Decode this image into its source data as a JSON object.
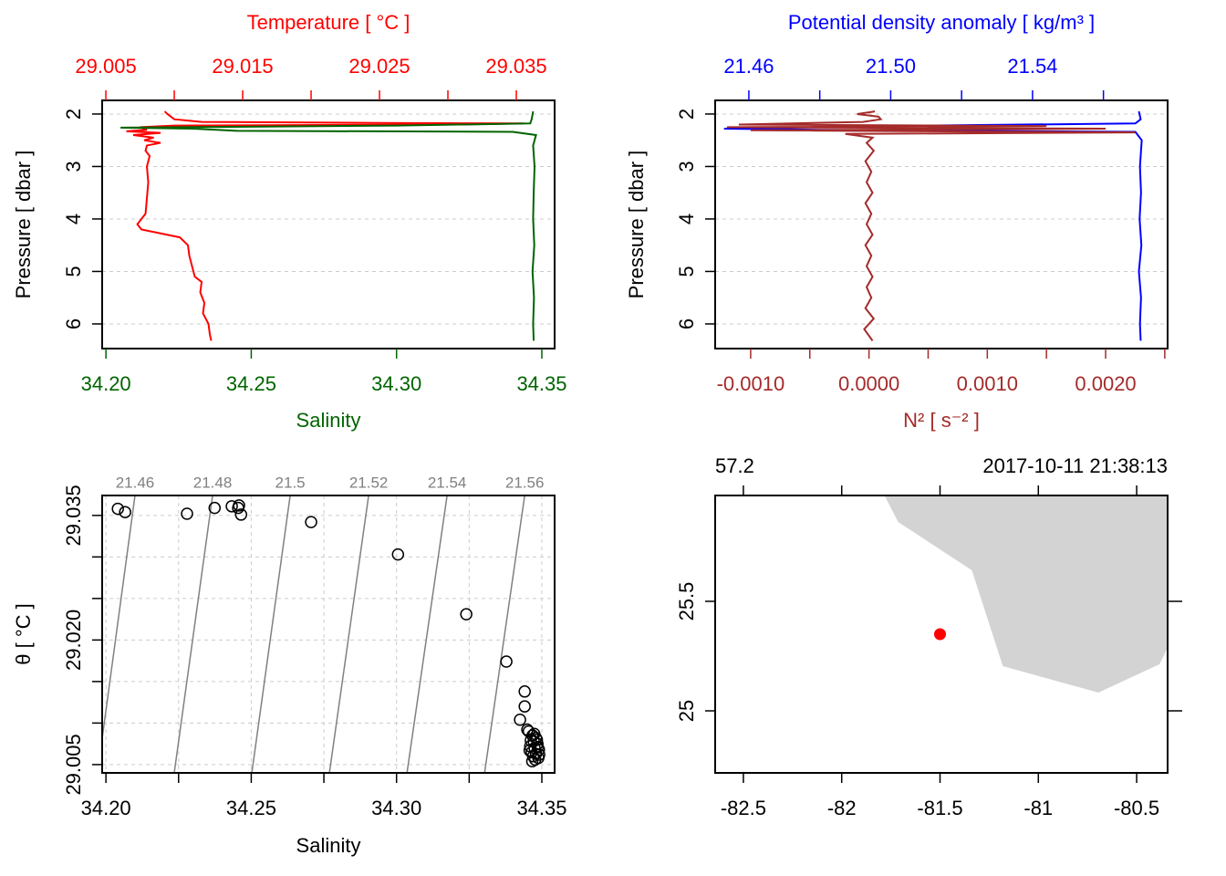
{
  "chart_data": [
    {
      "type": "profile",
      "x_label": "Salinity",
      "x2_label": "Temperature [ °C ]",
      "y_label": "Pressure [ dbar ]",
      "x_color": "#006400",
      "x2_color": "#ff0000",
      "xlim": [
        34.1987,
        34.3544
      ],
      "xticks": [
        {
          "value": 34.2,
          "label": "34.20"
        },
        {
          "value": 34.25,
          "label": "34.25"
        },
        {
          "value": 34.3,
          "label": "34.30"
        },
        {
          "value": 34.35,
          "label": "34.35"
        }
      ],
      "x2lim": [
        29.00473,
        29.0378
      ],
      "x2ticks": [
        29.005,
        29.015,
        29.025,
        29.035
      ],
      "minor_x2ticks": [
        29.01,
        29.02,
        29.03
      ],
      "ylim": [
        6.47,
        1.74
      ],
      "yticks": [
        2,
        3,
        4,
        5,
        6
      ],
      "grid": "y",
      "series": [
        {
          "axis": "x2",
          "color": "#ff0000",
          "pressure": [
            1.95,
            2.0,
            2.1,
            2.15,
            2.17,
            2.18,
            2.2,
            2.22,
            2.25,
            2.3,
            2.33,
            2.36,
            2.4,
            2.45,
            2.5,
            2.55,
            2.6,
            2.7,
            2.8,
            3.0,
            3.3,
            3.6,
            3.9,
            4.1,
            4.2,
            4.35,
            4.5,
            4.7,
            4.9,
            5.1,
            5.2,
            5.4,
            5.6,
            5.8,
            6.0,
            6.2,
            6.32
          ],
          "values": [
            29.0093,
            29.0095,
            29.01,
            29.012,
            29.025,
            29.0355,
            29.03,
            29.01,
            29.0075,
            29.008,
            29.0065,
            29.009,
            29.007,
            29.0085,
            29.0078,
            29.009,
            29.008,
            29.0079,
            29.0082,
            29.008,
            29.0081,
            29.008,
            29.0079,
            29.0073,
            29.0076,
            29.0104,
            29.011,
            29.0111,
            29.0113,
            29.0115,
            29.012,
            29.0119,
            29.0122,
            29.0121,
            29.0125,
            29.0126,
            29.0127
          ]
        },
        {
          "axis": "x",
          "color": "#006400",
          "pressure": [
            1.95,
            2.1,
            2.18,
            2.22,
            2.26,
            2.28,
            2.32,
            2.34,
            2.4,
            2.6,
            3.0,
            3.5,
            4.0,
            4.5,
            5.0,
            5.5,
            6.0,
            6.32
          ],
          "values": [
            34.347,
            34.3465,
            34.346,
            34.3,
            34.205,
            34.23,
            34.245,
            34.34,
            34.348,
            34.347,
            34.3475,
            34.3472,
            34.347,
            34.3474,
            34.3468,
            34.3473,
            34.347,
            34.3472
          ]
        }
      ]
    },
    {
      "type": "profile",
      "x_label": "N² [ s⁻² ]",
      "x2_label": "Potential density anomaly [ kg/m³ ]",
      "y_label": "Pressure [ dbar ]",
      "x_color": "#a52a2a",
      "x2_color": "#0000ff",
      "xlim": [
        -0.0013,
        0.002524
      ],
      "xticks": [
        {
          "value": -0.001,
          "label": "-0.0010"
        },
        {
          "value": 0,
          "label": "0.0000"
        },
        {
          "value": 0.001,
          "label": "0.0010"
        },
        {
          "value": 0.002,
          "label": "0.0020"
        }
      ],
      "minor_xticks": [
        -0.0005,
        0.0005,
        0.0015,
        0.0025
      ],
      "x2lim": [
        21.4505,
        21.5781
      ],
      "x2ticks": [
        21.46,
        {
          "value": 21.5,
          "label": "21.50"
        },
        21.54
      ],
      "minor_x2ticks": [
        21.48,
        21.52,
        21.56
      ],
      "ylim": [
        6.47,
        1.74
      ],
      "yticks": [
        2,
        3,
        4,
        5,
        6
      ],
      "grid": "y",
      "series": [
        {
          "axis": "x2",
          "color": "#0000ff",
          "pressure": [
            1.95,
            2.1,
            2.18,
            2.22,
            2.28,
            2.3,
            2.34,
            2.5,
            3.0,
            3.5,
            4.0,
            4.5,
            5.0,
            5.5,
            6.0,
            6.32
          ],
          "values": [
            21.57,
            21.5705,
            21.569,
            21.51,
            21.453,
            21.48,
            21.569,
            21.5708,
            21.5703,
            21.5706,
            21.5702,
            21.5707,
            21.57,
            21.5706,
            21.5703,
            21.5705
          ]
        },
        {
          "axis": "x",
          "color": "#a52a2a",
          "pressure": [
            1.95,
            2.0,
            2.05,
            2.1,
            2.15,
            2.2,
            2.23,
            2.25,
            2.28,
            2.31,
            2.35,
            2.38,
            2.45,
            2.55,
            2.7,
            2.9,
            3.1,
            3.3,
            3.5,
            3.7,
            3.9,
            4.1,
            4.3,
            4.5,
            4.7,
            4.9,
            5.1,
            5.3,
            5.5,
            5.7,
            5.9,
            6.1,
            6.32
          ],
          "values": [
            5e-05,
            -0.0001,
            8e-05,
            0.0001,
            -5e-05,
            -0.0011,
            0.0015,
            -0.0012,
            0.002,
            -0.001,
            0.00225,
            -0.0002,
            3e-05,
            -2e-05,
            4e-05,
            -3e-05,
            2e-05,
            -2e-05,
            3e-05,
            -3e-05,
            2e-05,
            -2e-05,
            3e-05,
            -3e-05,
            2e-05,
            -2e-05,
            3e-05,
            -2e-05,
            2e-05,
            -3e-05,
            4e-05,
            -4e-05,
            3e-05
          ]
        }
      ]
    },
    {
      "type": "scatter",
      "x_label": "Salinity",
      "y_label": "θ [ °C ]",
      "xlim": [
        34.1987,
        34.3544
      ],
      "xticks": [
        {
          "value": 34.2,
          "label": "34.20"
        },
        {
          "value": 34.25,
          "label": "34.25"
        },
        {
          "value": 34.3,
          "label": "34.30"
        },
        {
          "value": 34.35,
          "label": "34.35"
        }
      ],
      "minor_xticks": [
        34.225,
        34.275,
        34.325
      ],
      "ylim": [
        29.004,
        29.0374
      ],
      "yticks": [
        29.005,
        {
          "value": 29.02,
          "label": "29.020"
        },
        29.035
      ],
      "minor_yticks": [
        29.01,
        29.015,
        29.025,
        29.03
      ],
      "grid": "both",
      "x": [
        34.2041,
        34.2066,
        34.2279,
        34.2374,
        34.2433,
        34.2458,
        34.2455,
        34.2465,
        34.2706,
        34.3005,
        34.324,
        34.3378,
        34.3441,
        34.3441,
        34.3425,
        34.345,
        34.3455,
        34.3468,
        34.348,
        34.3472,
        34.3485,
        34.346,
        34.3475,
        34.349,
        34.3465,
        34.348,
        34.347,
        34.3488,
        34.3458,
        34.3477,
        34.3467,
        34.3483,
        34.3462,
        34.3491,
        34.3474,
        34.3486
      ],
      "values": [
        29.0358,
        29.0354,
        29.0352,
        29.0359,
        29.0361,
        29.0362,
        29.0359,
        29.0351,
        29.0342,
        29.0303,
        29.0231,
        29.0174,
        29.0138,
        29.012,
        29.0104,
        29.0092,
        29.009,
        29.0085,
        29.0082,
        29.0078,
        29.0075,
        29.0072,
        29.007,
        29.0068,
        29.0065,
        29.0063,
        29.006,
        29.0058,
        29.0067,
        29.0056,
        29.0054,
        29.008,
        29.0079,
        29.0062,
        29.0087,
        29.0071
      ],
      "isopycnals": {
        "color": "#808080",
        "levels": [
          21.46,
          21.48,
          21.5,
          21.52,
          21.54,
          21.56
        ],
        "salinity_at_top": [
          34.21,
          34.2367,
          34.2634,
          34.2904,
          34.3174,
          34.3441
        ],
        "salinity_at_bottom": [
          34.1971,
          34.2235,
          34.2502,
          34.2769,
          34.3036,
          34.3303
        ]
      }
    },
    {
      "type": "map",
      "top_left_label": "57.2",
      "top_right_label": "2017-10-11 21:38:13",
      "xlim": [
        -82.6435,
        -80.3426
      ],
      "xticks": [
        -82.5,
        -82,
        -81.5,
        -81,
        -80.5
      ],
      "ylim": [
        24.7167,
        25.9833
      ],
      "yticks": [
        25,
        25.5
      ],
      "land": {
        "color": "#d3d3d3",
        "lon": [
          -81.7824,
          -81.713,
          -81.338,
          -81.1806,
          -80.6944,
          -80.3843,
          -80.3426,
          -80.3426
        ],
        "lat": [
          25.9833,
          25.8625,
          25.6417,
          25.2042,
          25.0833,
          25.2125,
          25.2875,
          25.9833
        ]
      },
      "station": {
        "lon": -81.5,
        "lat": 25.35,
        "color": "#ff0000"
      }
    }
  ]
}
